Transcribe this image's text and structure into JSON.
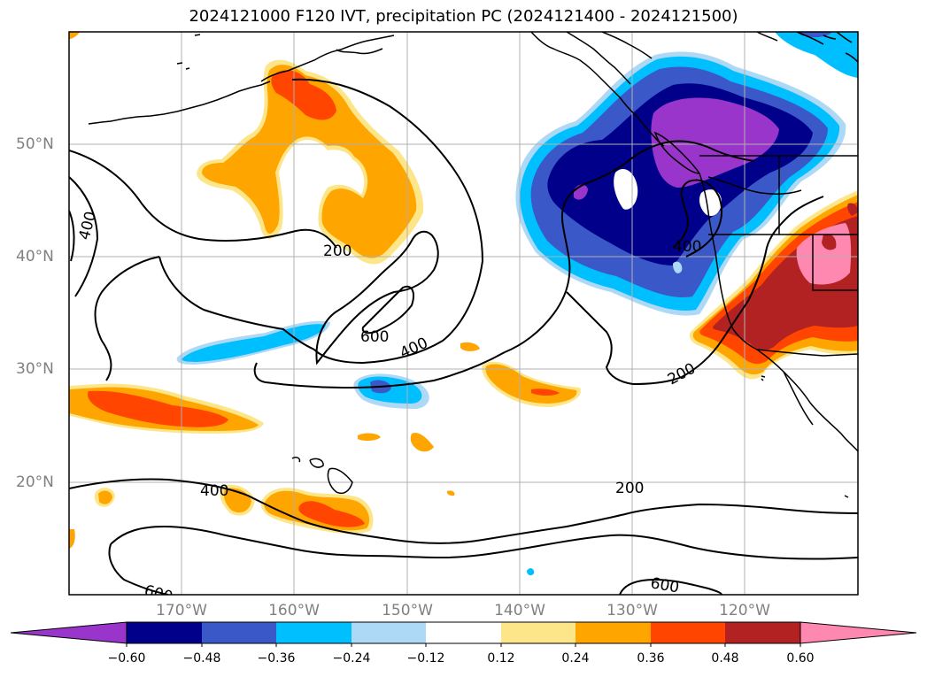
{
  "title": "2024121000 F120 IVT, precipitation PC (2024121400 - 2024121500)",
  "lat_labels": [
    "50°N",
    "40°N",
    "30°N",
    "20°N"
  ],
  "lon_labels": [
    "170°W",
    "160°W",
    "150°W",
    "140°W",
    "130°W",
    "120°W"
  ],
  "colorbar": {
    "ticks": [
      "−0.60",
      "−0.48",
      "−0.36",
      "−0.24",
      "−0.12",
      "0.12",
      "0.24",
      "0.36",
      "0.48",
      "0.60"
    ],
    "colors": [
      "#9a35cc",
      "#00008b",
      "#3a58c8",
      "#00bfff",
      "#add8f6",
      "#ffffff",
      "#fde68a",
      "#ffa500",
      "#ff4500",
      "#b22222",
      "#ff88b0"
    ]
  },
  "contour_labels": {
    "c400_west": "400",
    "c200_center": "200",
    "c600_center": "600",
    "c400_center": "400",
    "c400_east": "400",
    "c200_east": "200",
    "c400_south": "400",
    "c200_south": "200",
    "c600_sw": "600",
    "c600_se": "600"
  },
  "colors": {
    "purple": "#9a35cc",
    "navy": "#00008b",
    "blue": "#3a58c8",
    "sky": "#00bfff",
    "light_blue": "#add8f6",
    "yellow": "#fde68a",
    "orange": "#ffa500",
    "red_orange": "#ff4500",
    "firebrick": "#b22222",
    "pink": "#ff88b0"
  }
}
